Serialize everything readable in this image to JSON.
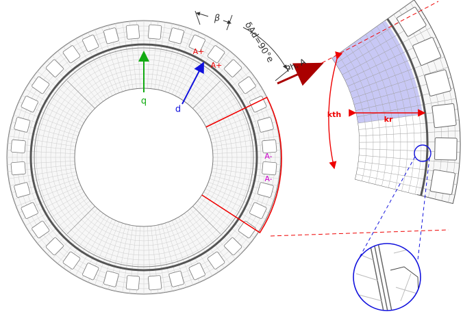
{
  "labels": {
    "beta": "β",
    "delta": "δAd=90°e",
    "a_plus_1": "A+",
    "a_plus_2": "A+",
    "phase": "Ph. A",
    "q": "q",
    "d": "d",
    "a_minus_1": "A-",
    "a_minus_2": "A-",
    "kth": "kth",
    "kr": "kr"
  }
}
